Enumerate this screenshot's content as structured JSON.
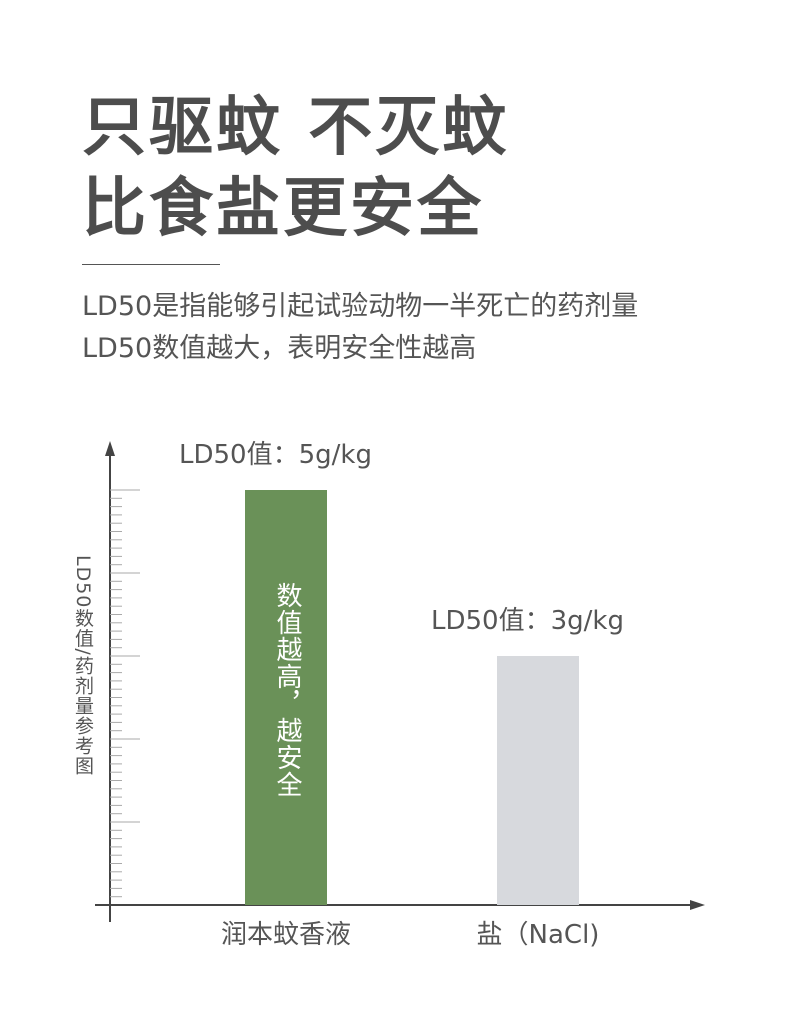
{
  "headline": {
    "line1": "只驱蚊 不灭蚊",
    "line2": "比食盐更安全"
  },
  "description": {
    "line1": "LD50是指能够引起试验动物一半死亡的药剂量",
    "line2": "LD50数值越大，表明安全性越高"
  },
  "colors": {
    "headline": "#4d4d4d",
    "text": "#555555",
    "bar_product": "#6a9158",
    "bar_salt": "#d7d9dd",
    "axis": "#444444"
  },
  "chart_data": {
    "type": "bar",
    "categories": [
      "润本蚊香液",
      "盐（NaCl)"
    ],
    "values": [
      5,
      3
    ],
    "units": "g/kg",
    "value_labels": [
      "LD50值：5g/kg",
      "LD50值：3g/kg"
    ],
    "ylabel": "LD50数值/药剂量参考图",
    "ylim": [
      0,
      5
    ],
    "bar_annotation": "数值越高，越安全",
    "grid": false,
    "legend": "none"
  }
}
